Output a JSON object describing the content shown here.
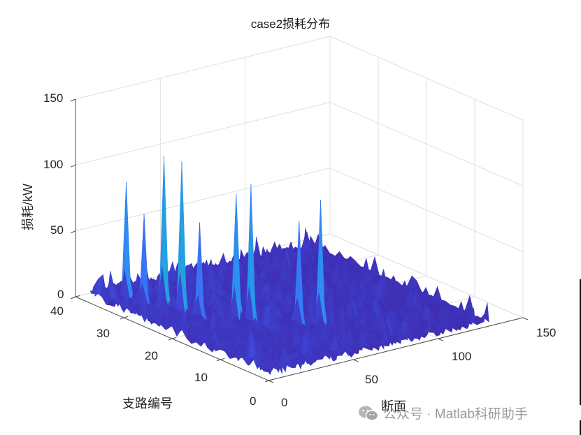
{
  "chart_data": {
    "type": "surface3d",
    "title": "case2损耗分布",
    "xlabel": "断面",
    "ylabel": "支路编号",
    "zlabel": "损耗/kW",
    "xlim": [
      0,
      150
    ],
    "ylim": [
      0,
      40
    ],
    "zlim": [
      0,
      150
    ],
    "x_ticks": [
      "0",
      "50",
      "100",
      "150"
    ],
    "y_ticks": [
      "0",
      "10",
      "20",
      "30",
      "40"
    ],
    "z_ticks": [
      "0",
      "50",
      "100",
      "150"
    ],
    "grid": true,
    "colormap": "parula",
    "view": "3D default (az -37.5, el 30)",
    "surface_extent": {
      "x": [
        0,
        130
      ],
      "y": [
        0,
        37
      ]
    },
    "notable_peaks": [
      {
        "branch": 33,
        "section": 10,
        "loss_kw": 95
      },
      {
        "branch": 30,
        "section": 12,
        "loss_kw": 75
      },
      {
        "branch": 28,
        "section": 18,
        "loss_kw": 120
      },
      {
        "branch": 25,
        "section": 20,
        "loss_kw": 120
      },
      {
        "branch": 22,
        "section": 22,
        "loss_kw": 78
      },
      {
        "branch": 19,
        "section": 35,
        "loss_kw": 100
      },
      {
        "branch": 17,
        "section": 38,
        "loss_kw": 110
      },
      {
        "branch": 13,
        "section": 55,
        "loss_kw": 83
      },
      {
        "branch": 11,
        "section": 62,
        "loss_kw": 100
      }
    ],
    "baseline_loss_kw": "approx 2-15 across remaining branches/sections"
  },
  "labels": {
    "title": "case2损耗分布",
    "zlabel": "损耗/kW",
    "ylabel": "支路编号",
    "xlabel": "断面",
    "z_ticks": [
      "150",
      "100",
      "50",
      "0"
    ],
    "y_ticks": [
      "40",
      "30",
      "20",
      "10",
      "0"
    ],
    "x_ticks": [
      "0",
      "50",
      "100",
      "150"
    ]
  },
  "watermark": {
    "icon": "wechat-icon",
    "text": "公众号 · Matlab科研助手"
  },
  "colors": {
    "grid": "#e0e0e0",
    "axis": "#4d4d4d",
    "low": "#3e26a8",
    "mid": "#16b5c8",
    "high": "#f9cf2b"
  }
}
